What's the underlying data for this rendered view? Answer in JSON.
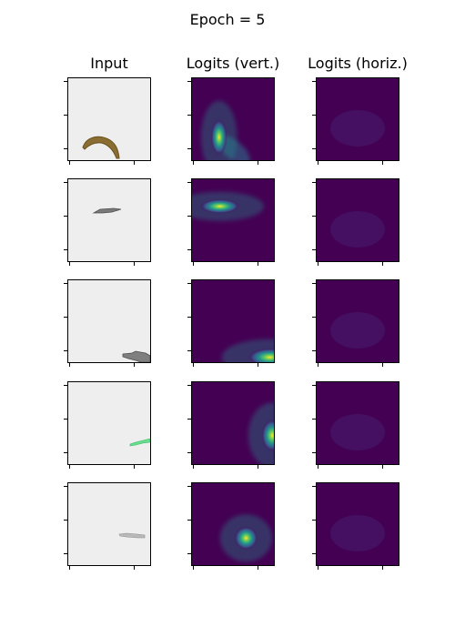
{
  "chart_data": {
    "type": "heatmap",
    "title": "Epoch = 5",
    "columns": [
      "Input",
      "Logits (vert.)",
      "Logits (horiz.)"
    ],
    "rows": [
      {
        "input": {
          "shape": "banana",
          "color": "#8a6d32"
        },
        "vert": {
          "peak": [
            0.33,
            0.72
          ],
          "spread": "elongated-vertical",
          "trail": true
        },
        "horiz": {
          "peak": null
        }
      },
      {
        "input": {
          "shape": "blade",
          "color": "#7a7a7a"
        },
        "vert": {
          "peak": [
            0.34,
            0.33
          ],
          "spread": "elongated-horizontal"
        },
        "horiz": {
          "peak": null
        }
      },
      {
        "input": {
          "shape": "shoe",
          "color": "#7f7f7f"
        },
        "vert": {
          "peak": [
            0.95,
            0.94
          ],
          "spread": "edge-bottom-right"
        },
        "horiz": {
          "peak": null
        }
      },
      {
        "input": {
          "shape": "leaf",
          "color": "#66dd8c"
        },
        "vert": {
          "peak": [
            0.98,
            0.65
          ],
          "spread": "edge-right"
        },
        "horiz": {
          "peak": null
        }
      },
      {
        "input": {
          "shape": "stick",
          "color": "#b9b9b9"
        },
        "vert": {
          "peak": [
            0.66,
            0.67
          ],
          "spread": "round"
        },
        "horiz": {
          "peak": null
        }
      }
    ],
    "colormap": "viridis",
    "colors": {
      "viridis_low": "#440154",
      "viridis_mid": "#21918c",
      "viridis_high": "#fde725",
      "input_background": "#eeeeee"
    },
    "tick_labels_shown": false,
    "grid": false
  }
}
